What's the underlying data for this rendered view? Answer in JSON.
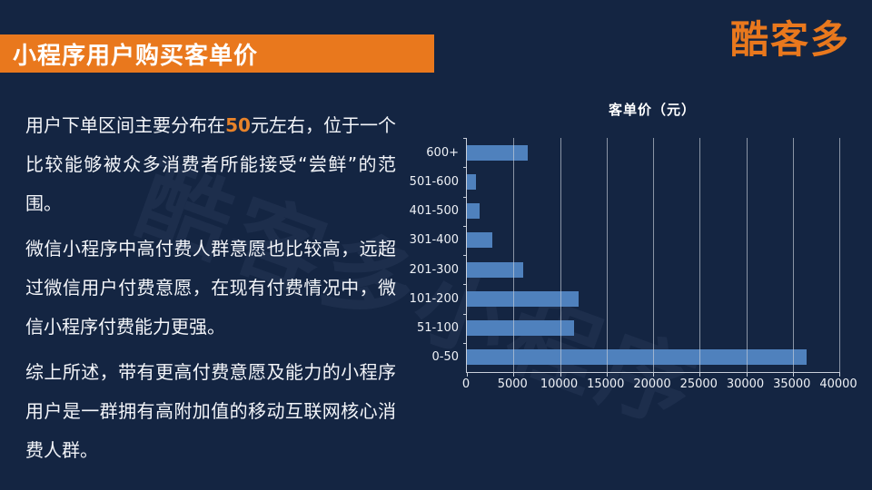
{
  "page": {
    "background_color": "#142542"
  },
  "header": {
    "title": "小程序用户购买客单价",
    "banner_color": "#e9781d"
  },
  "logo": {
    "text": "酷客多",
    "color": "#e9781d"
  },
  "watermark": {
    "text": "酷客多小程序"
  },
  "article": {
    "p1_before": "用户下单区间主要分布在",
    "p1_highlight": "50",
    "p1_after": "元左右，位于一个比较能够被众多消费者所能接受“尝鲜”的范围。",
    "p2": "微信小程序中高付费人群意愿也比较高，远超过微信用户付费意愿，在现有付费情况中，微信小程序付费能力更强。",
    "p3": "综上所述，带有更高付费意愿及能力的小程序用户是一群拥有高附加值的移动互联网核心消费人群。",
    "highlight_color": "#e8832a"
  },
  "chart_data": {
    "type": "bar",
    "orientation": "horizontal",
    "title": "客单价（元）",
    "categories": [
      "600+",
      "501-600",
      "401-500",
      "301-400",
      "201-300",
      "101-200",
      "51-100",
      "0-50"
    ],
    "values": [
      6500,
      1000,
      1400,
      2700,
      6000,
      12000,
      11500,
      36500
    ],
    "xlim": [
      0,
      40000
    ],
    "xticks": [
      0,
      5000,
      10000,
      15000,
      20000,
      25000,
      30000,
      35000,
      40000
    ],
    "bar_color": "#4f81bd",
    "grid": true,
    "gridline_color": "#c9cfda",
    "legend": "none"
  }
}
